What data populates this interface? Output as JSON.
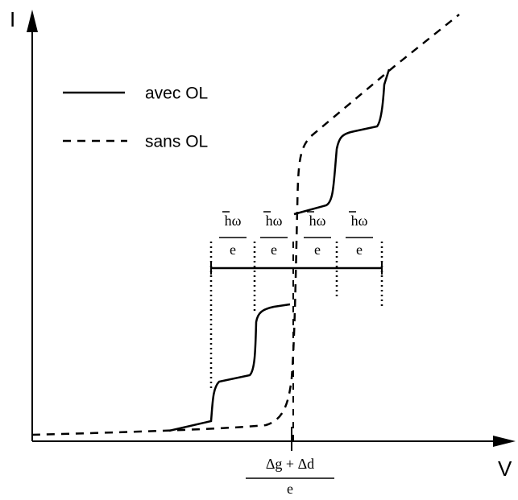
{
  "axes": {
    "y_label": "I",
    "x_label": "V"
  },
  "legend": [
    {
      "label": "avec OL"
    },
    {
      "label": "sans OL"
    }
  ],
  "steps": [
    {
      "numerator": "hω",
      "denominator": "e"
    },
    {
      "numerator": "hω",
      "denominator": "e"
    },
    {
      "numerator": "hω",
      "denominator": "e"
    },
    {
      "numerator": "hω",
      "denominator": "e"
    }
  ],
  "x_marker": {
    "numerator": "Δg + Δd",
    "denominator": "e"
  }
}
